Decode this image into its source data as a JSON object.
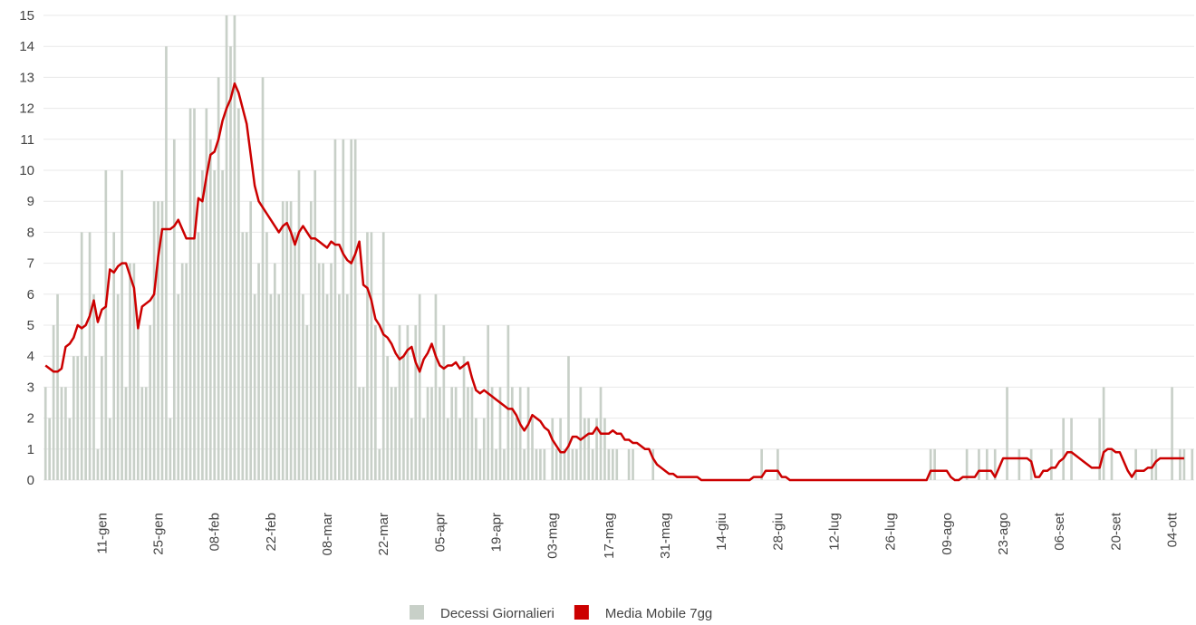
{
  "chart_data": {
    "type": "bar",
    "categories": [
      null,
      null,
      null,
      null,
      null,
      null,
      null,
      null,
      null,
      null,
      null,
      null,
      null,
      null,
      "11-gen",
      null,
      null,
      null,
      null,
      null,
      null,
      null,
      null,
      null,
      null,
      null,
      null,
      null,
      "25-gen",
      null,
      null,
      null,
      null,
      null,
      null,
      null,
      null,
      null,
      null,
      null,
      null,
      null,
      "08-feb",
      null,
      null,
      null,
      null,
      null,
      null,
      null,
      null,
      null,
      null,
      null,
      null,
      null,
      "22-feb",
      null,
      null,
      null,
      null,
      null,
      null,
      null,
      null,
      null,
      null,
      null,
      null,
      null,
      "08-mar",
      null,
      null,
      null,
      null,
      null,
      null,
      null,
      null,
      null,
      null,
      null,
      null,
      null,
      "22-mar",
      null,
      null,
      null,
      null,
      null,
      null,
      null,
      null,
      null,
      null,
      null,
      null,
      null,
      "05-apr",
      null,
      null,
      null,
      null,
      null,
      null,
      null,
      null,
      null,
      null,
      null,
      null,
      null,
      "19-apr",
      null,
      null,
      null,
      null,
      null,
      null,
      null,
      null,
      null,
      null,
      null,
      null,
      null,
      "03-mag",
      null,
      null,
      null,
      null,
      null,
      null,
      null,
      null,
      null,
      null,
      null,
      null,
      null,
      "17-mag",
      null,
      null,
      null,
      null,
      null,
      null,
      null,
      null,
      null,
      null,
      null,
      null,
      null,
      "31-mag",
      null,
      null,
      null,
      null,
      null,
      null,
      null,
      null,
      null,
      null,
      null,
      null,
      null,
      "14-giu",
      null,
      null,
      null,
      null,
      null,
      null,
      null,
      null,
      null,
      null,
      null,
      null,
      null,
      "28-giu",
      null,
      null,
      null,
      null,
      null,
      null,
      null,
      null,
      null,
      null,
      null,
      null,
      null,
      "12-lug",
      null,
      null,
      null,
      null,
      null,
      null,
      null,
      null,
      null,
      null,
      null,
      null,
      null,
      "26-lug",
      null,
      null,
      null,
      null,
      null,
      null,
      null,
      null,
      null,
      null,
      null,
      null,
      null,
      "09-ago",
      null,
      null,
      null,
      null,
      null,
      null,
      null,
      null,
      null,
      null,
      null,
      null,
      null,
      "23-ago",
      null,
      null,
      null,
      null,
      null,
      null,
      null,
      null,
      null,
      null,
      null,
      null,
      null,
      "06-set",
      null,
      null,
      null,
      null,
      null,
      null,
      null,
      null,
      null,
      null,
      null,
      null,
      null,
      "20-set",
      null,
      null,
      null,
      null,
      null,
      null,
      null,
      null,
      null,
      null,
      null,
      null,
      null,
      "04-ott",
      null,
      null,
      null,
      null,
      null
    ],
    "series": [
      {
        "name": "Decessi Giornalieri",
        "type": "bar",
        "color": "#c8d0c8",
        "values": [
          3,
          2,
          5,
          6,
          3,
          3,
          2,
          4,
          4,
          8,
          4,
          8,
          6,
          1,
          4,
          10,
          2,
          8,
          6,
          10,
          3,
          7,
          7,
          5,
          3,
          3,
          5,
          9,
          9,
          9,
          14,
          2,
          11,
          6,
          7,
          7,
          12,
          12,
          8,
          10,
          12,
          11,
          10,
          13,
          10,
          15,
          14,
          15,
          12,
          8,
          8,
          9,
          6,
          7,
          13,
          8,
          6,
          7,
          6,
          9,
          9,
          9,
          8,
          10,
          6,
          5,
          9,
          10,
          7,
          7,
          6,
          7,
          11,
          6,
          11,
          6,
          11,
          11,
          3,
          3,
          8,
          8,
          5,
          1,
          8,
          4,
          3,
          3,
          5,
          4,
          5,
          2,
          5,
          6,
          2,
          3,
          3,
          6,
          3,
          5,
          2,
          3,
          3,
          2,
          4,
          3,
          3,
          2,
          1,
          2,
          5,
          3,
          1,
          3,
          1,
          5,
          3,
          2,
          3,
          1,
          3,
          2,
          1,
          1,
          1,
          0,
          2,
          1,
          2,
          1,
          4,
          1,
          1,
          3,
          2,
          2,
          1,
          2,
          3,
          2,
          1,
          1,
          1,
          0,
          0,
          1,
          1,
          0,
          0,
          0,
          0,
          1,
          0,
          0,
          0,
          0,
          0,
          0,
          0,
          0,
          0,
          0,
          0,
          0,
          0,
          0,
          0,
          0,
          0,
          0,
          0,
          0,
          0,
          0,
          0,
          0,
          0,
          0,
          1,
          0,
          0,
          0,
          1,
          0,
          0,
          0,
          0,
          0,
          0,
          0,
          0,
          0,
          0,
          0,
          0,
          0,
          0,
          0,
          0,
          0,
          0,
          0,
          0,
          0,
          0,
          0,
          0,
          0,
          0,
          0,
          0,
          0,
          0,
          0,
          0,
          0,
          0,
          0,
          0,
          0,
          1,
          1,
          0,
          0,
          0,
          0,
          0,
          0,
          0,
          1,
          0,
          0,
          1,
          0,
          1,
          0,
          1,
          0,
          0,
          3,
          0,
          0,
          1,
          0,
          0,
          1,
          0,
          0,
          0,
          0,
          1,
          0,
          0,
          2,
          0,
          2,
          0,
          0,
          0,
          0,
          0,
          0,
          2,
          3,
          0,
          1,
          0,
          0,
          0,
          0,
          0,
          1,
          0,
          0,
          0,
          1,
          1,
          0,
          0,
          0,
          3,
          0,
          1,
          1,
          0,
          1
        ]
      },
      {
        "name": "Media Mobile 7gg",
        "type": "line",
        "color": "#cc0000",
        "values": [
          3.7,
          3.6,
          3.5,
          3.5,
          3.6,
          4.3,
          4.4,
          4.6,
          5.0,
          4.9,
          5.0,
          5.3,
          5.8,
          5.1,
          5.5,
          5.6,
          6.8,
          6.7,
          6.9,
          7.0,
          7.0,
          6.6,
          6.2,
          4.9,
          5.6,
          5.7,
          5.8,
          6.0,
          7.2,
          8.1,
          8.1,
          8.1,
          8.2,
          8.4,
          8.1,
          7.8,
          7.8,
          7.8,
          9.1,
          9.0,
          9.8,
          10.5,
          10.6,
          11.0,
          11.6,
          12.0,
          12.3,
          12.8,
          12.5,
          12.0,
          11.5,
          10.5,
          9.5,
          9.0,
          8.8,
          8.6,
          8.4,
          8.2,
          8.0,
          8.2,
          8.3,
          8.0,
          7.6,
          8.0,
          8.2,
          8.0,
          7.8,
          7.8,
          7.7,
          7.6,
          7.5,
          7.7,
          7.6,
          7.6,
          7.3,
          7.1,
          7.0,
          7.3,
          7.7,
          6.3,
          6.2,
          5.8,
          5.2,
          5.0,
          4.7,
          4.6,
          4.4,
          4.1,
          3.9,
          4.0,
          4.2,
          4.3,
          3.8,
          3.5,
          3.9,
          4.1,
          4.4,
          4.0,
          3.7,
          3.6,
          3.7,
          3.7,
          3.8,
          3.6,
          3.7,
          3.8,
          3.3,
          2.9,
          2.8,
          2.9,
          2.8,
          2.7,
          2.6,
          2.5,
          2.4,
          2.3,
          2.3,
          2.1,
          1.8,
          1.6,
          1.8,
          2.1,
          2.0,
          1.9,
          1.7,
          1.6,
          1.3,
          1.1,
          0.9,
          0.9,
          1.1,
          1.4,
          1.4,
          1.3,
          1.4,
          1.5,
          1.5,
          1.7,
          1.5,
          1.5,
          1.5,
          1.6,
          1.5,
          1.5,
          1.3,
          1.3,
          1.2,
          1.2,
          1.1,
          1.0,
          1.0,
          0.7,
          0.5,
          0.4,
          0.3,
          0.2,
          0.2,
          0.1,
          0.1,
          0.1,
          0.1,
          0.1,
          0.1,
          0,
          0,
          0,
          0,
          0,
          0,
          0,
          0,
          0,
          0,
          0,
          0,
          0,
          0.1,
          0.1,
          0.1,
          0.3,
          0.3,
          0.3,
          0.3,
          0.1,
          0.1,
          0,
          0,
          0,
          0,
          0,
          0,
          0,
          0,
          0,
          0,
          0,
          0,
          0,
          0,
          0,
          0,
          0,
          0,
          0,
          0,
          0,
          0,
          0,
          0,
          0,
          0,
          0,
          0,
          0,
          0,
          0,
          0,
          0,
          0,
          0,
          0.3,
          0.3,
          0.3,
          0.3,
          0.3,
          0.1,
          0,
          0,
          0.1,
          0.1,
          0.1,
          0.1,
          0.3,
          0.3,
          0.3,
          0.3,
          0.1,
          0.4,
          0.7,
          0.7,
          0.7,
          0.7,
          0.7,
          0.7,
          0.7,
          0.6,
          0.1,
          0.1,
          0.3,
          0.3,
          0.4,
          0.4,
          0.6,
          0.7,
          0.9,
          0.9,
          0.8,
          0.7,
          0.6,
          0.5,
          0.4,
          0.4,
          0.4,
          0.9,
          1.0,
          1.0,
          0.9,
          0.9,
          0.6,
          0.3,
          0.1,
          0.3,
          0.3,
          0.3,
          0.4,
          0.4,
          0.6,
          0.7,
          0.7,
          0.7,
          0.7,
          0.7,
          0.7,
          0.7,
          null,
          null
        ]
      }
    ],
    "ylim": [
      0,
      15
    ],
    "yticks": [
      0,
      1,
      2,
      3,
      4,
      5,
      6,
      7,
      8,
      9,
      10,
      11,
      12,
      13,
      14,
      15
    ],
    "grid": true,
    "legend": "bottom"
  }
}
